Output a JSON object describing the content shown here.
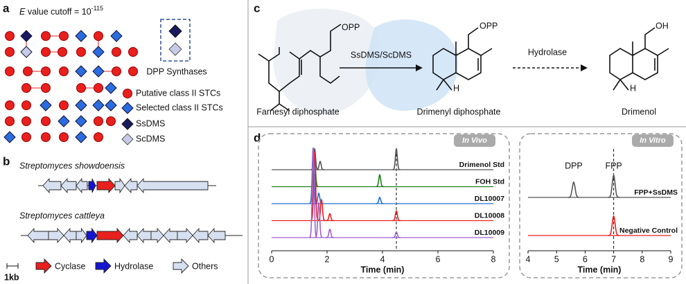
{
  "panel_a": {
    "label": "a",
    "title": {
      "italic": "E",
      "text": " value cutoff = 10",
      "superscript": "-115"
    },
    "legend": {
      "dpp": "DPP Synthases",
      "putative": "Putative class II STCs",
      "selected": "Selected class II STCs",
      "ssdms": "SsDMS",
      "scdms": "ScDMS"
    }
  },
  "panel_b": {
    "label": "b",
    "species1": "Streptomyces showdoensis",
    "species2": "Streptomyces cattleya",
    "legend": {
      "scale": "1kb",
      "cyclase": "Cyclase",
      "hydrolase": "Hydrolase",
      "others": "Others"
    }
  },
  "panel_c": {
    "label": "c",
    "opp1": "OPP",
    "enzyme": "SsDMS/ScDMS",
    "fpp": "Farnesyl diphosphate",
    "opp2": "OPP",
    "h1": "H",
    "dpp": "Drimenyl diphosphate",
    "hydrolase": "Hydrolase",
    "oh": "OH",
    "h2": "H",
    "drimenol": "Drimenol"
  },
  "panel_d": {
    "label": "d",
    "in_vivo": {
      "badge": "In Vivo",
      "xlabel": "Time (min)",
      "xlim": [
        0,
        8
      ],
      "xticks": [
        0,
        2,
        4,
        6,
        8
      ],
      "marker": 4.5,
      "series": [
        {
          "name": "Drimenol Std",
          "color": "#555555",
          "peaks_x": [
            1.55,
            1.75,
            4.5
          ],
          "peaks_h": [
            30,
            12,
            30
          ]
        },
        {
          "name": "FOH Std",
          "color": "#1a7f1a",
          "peaks_x": [
            1.55,
            3.9
          ],
          "peaks_h": [
            40,
            17
          ]
        },
        {
          "name": "DL10007",
          "color": "#1f6fd0",
          "peaks_x": [
            1.5,
            1.7,
            3.9
          ],
          "peaks_h": [
            80,
            15,
            9
          ]
        },
        {
          "name": "DL10008",
          "color": "#e8201e",
          "peaks_x": [
            1.55,
            1.8,
            2.1,
            4.5
          ],
          "peaks_h": [
            100,
            30,
            10,
            14
          ]
        },
        {
          "name": "DL10009",
          "color": "#a060d0",
          "peaks_x": [
            1.5,
            1.7,
            2.1,
            4.5
          ],
          "peaks_h": [
            130,
            50,
            12,
            8
          ]
        }
      ]
    },
    "in_vitro": {
      "badge": "In Vitro",
      "xlabel": "Time (min)",
      "xlim": [
        4,
        9
      ],
      "xticks": [
        4,
        5,
        6,
        7,
        8,
        9
      ],
      "marker": 7,
      "peak_labels": [
        "DPP",
        "FPP"
      ],
      "series": [
        {
          "name": "FPP+SsDMS",
          "color": "#555555",
          "peaks_x": [
            5.6,
            7.0
          ],
          "peaks_h": [
            22,
            32
          ]
        },
        {
          "name": "Negative Control",
          "color": "#e8201e",
          "peaks_x": [
            7.0
          ],
          "peaks_h": [
            28
          ]
        }
      ]
    }
  }
}
